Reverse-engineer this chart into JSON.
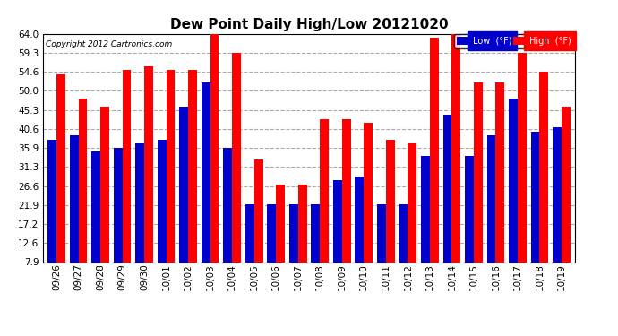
{
  "title": "Dew Point Daily High/Low 20121020",
  "copyright": "Copyright 2012 Cartronics.com",
  "categories": [
    "09/26",
    "09/27",
    "09/28",
    "09/29",
    "09/30",
    "10/01",
    "10/02",
    "10/03",
    "10/04",
    "10/05",
    "10/06",
    "10/07",
    "10/08",
    "10/09",
    "10/10",
    "10/11",
    "10/12",
    "10/13",
    "10/14",
    "10/15",
    "10/16",
    "10/17",
    "10/18",
    "10/19"
  ],
  "high_values": [
    54.0,
    48.0,
    46.0,
    55.0,
    56.0,
    55.0,
    55.0,
    64.0,
    59.3,
    33.0,
    27.0,
    27.0,
    43.0,
    43.0,
    42.0,
    38.0,
    37.0,
    63.0,
    64.0,
    52.0,
    52.0,
    59.3,
    54.6,
    46.0
  ],
  "low_values": [
    38.0,
    39.0,
    35.0,
    36.0,
    37.0,
    38.0,
    46.0,
    52.0,
    36.0,
    22.0,
    22.0,
    22.0,
    22.0,
    28.0,
    29.0,
    22.0,
    22.0,
    34.0,
    44.0,
    34.0,
    39.0,
    48.0,
    40.0,
    41.0
  ],
  "high_color": "#ff0000",
  "low_color": "#0000cc",
  "background_color": "#ffffff",
  "yticks": [
    7.9,
    12.6,
    17.2,
    21.9,
    26.6,
    31.3,
    35.9,
    40.6,
    45.3,
    50.0,
    54.6,
    59.3,
    64.0
  ],
  "ymin": 7.9,
  "ymax": 64.0,
  "grid_color": "#aaaaaa",
  "title_fontsize": 11,
  "tick_fontsize": 7.5,
  "legend_label_low": "Low  (°F)",
  "legend_label_high": "High  (°F)"
}
